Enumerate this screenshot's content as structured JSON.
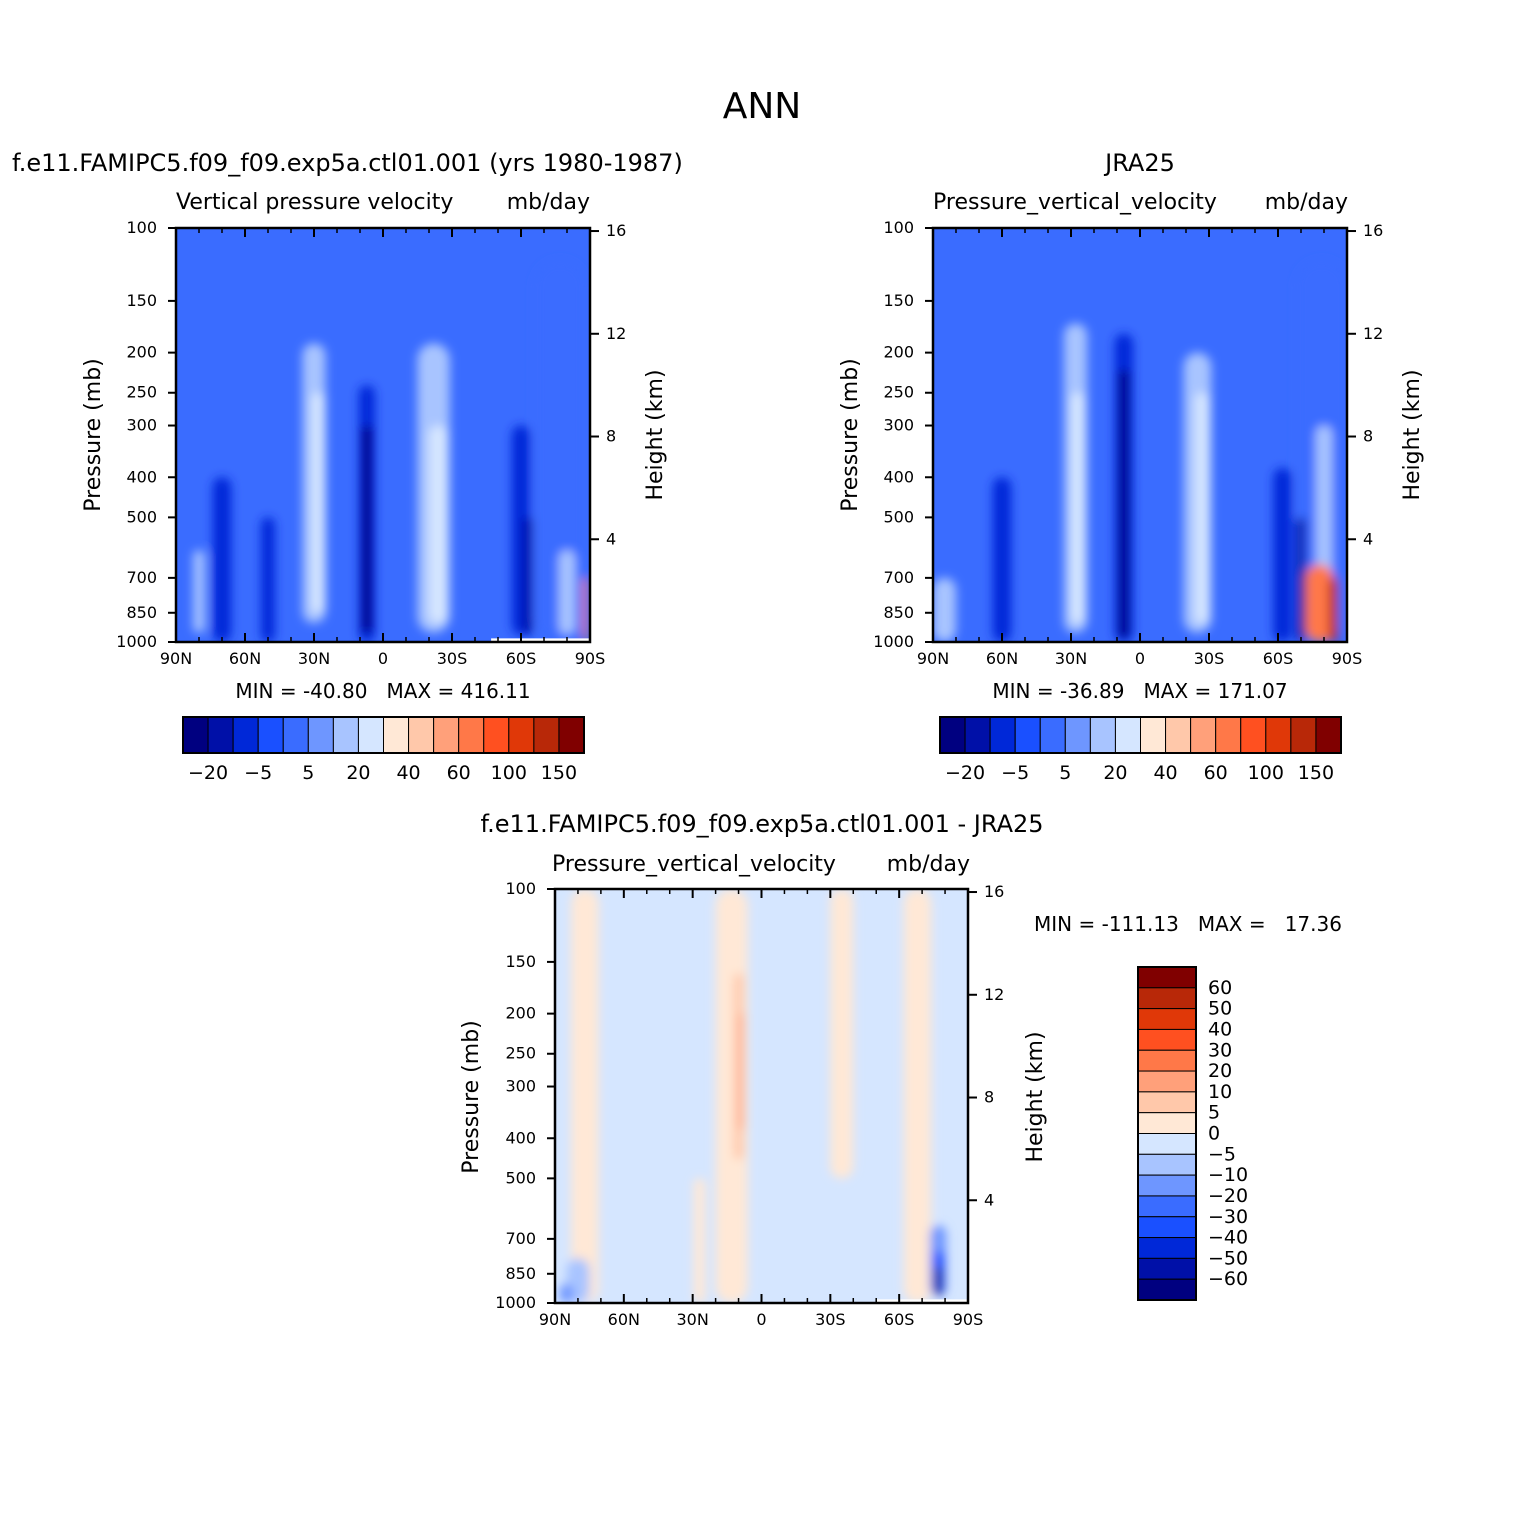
{
  "page_title": "ANN",
  "colors": {
    "model_obs_scale": [
      "#000080",
      "#0010a8",
      "#0028d8",
      "#1a50ff",
      "#3a6cff",
      "#6e96ff",
      "#a8c4ff",
      "#d5e6ff",
      "#ffe8d6",
      "#ffc8aa",
      "#ffa07a",
      "#ff7848",
      "#ff5020",
      "#e03808",
      "#b82808",
      "#800000"
    ],
    "diff_scale": [
      "#000080",
      "#0010a8",
      "#0028d8",
      "#1a50ff",
      "#3a6cff",
      "#6e96ff",
      "#a8c4ff",
      "#d5e6ff",
      "#ffe8d6",
      "#ffc8aa",
      "#ffa07a",
      "#ff7848",
      "#ff5020",
      "#e03808",
      "#b82808",
      "#800000"
    ]
  },
  "chart_data": [
    {
      "id": "model",
      "type": "heatmap",
      "title": "f.e11.FAMIPC5.f09_f09.exp5a.ctl01.001 (yrs 1980-1987)",
      "left_subtitle": "Vertical pressure velocity",
      "right_subtitle": "mb/day",
      "ylabel": "Pressure (mb)",
      "y2label": "Height (km)",
      "xticks": [
        "90N",
        "60N",
        "30N",
        "0",
        "30S",
        "60S",
        "90S"
      ],
      "yticks": [
        100,
        150,
        200,
        250,
        300,
        400,
        500,
        700,
        850,
        1000
      ],
      "y2ticks": [
        4,
        8,
        12,
        16
      ],
      "ylim": [
        1000,
        100
      ],
      "stats": "MIN = -40.80   MAX = 416.11",
      "colorbar": {
        "orientation": "horizontal",
        "labels": [
          "-20",
          "-5",
          "5",
          "20",
          "40",
          "60",
          "100",
          "150"
        ]
      },
      "features": [
        {
          "lat": -77,
          "p_top": 120,
          "p_bot": 1000,
          "width": 22,
          "level": 4
        },
        {
          "lat": 70,
          "p_top": 400,
          "p_bot": 1000,
          "width": 8,
          "level": 2
        },
        {
          "lat": 50,
          "p_top": 500,
          "p_bot": 1000,
          "width": 6,
          "level": 2
        },
        {
          "lat": 30,
          "p_top": 190,
          "p_bot": 900,
          "width": 10,
          "level": 6
        },
        {
          "lat": 28,
          "p_top": 250,
          "p_bot": 850,
          "width": 6,
          "level": 7
        },
        {
          "lat": 7,
          "p_top": 240,
          "p_bot": 1000,
          "width": 7,
          "level": 2
        },
        {
          "lat": 7,
          "p_top": 300,
          "p_bot": 950,
          "width": 4,
          "level": 0
        },
        {
          "lat": -22,
          "p_top": 190,
          "p_bot": 950,
          "width": 14,
          "level": 6
        },
        {
          "lat": -24,
          "p_top": 300,
          "p_bot": 900,
          "width": 8,
          "level": 7
        },
        {
          "lat": -60,
          "p_top": 300,
          "p_bot": 960,
          "width": 8,
          "level": 2
        },
        {
          "lat": -63,
          "p_top": 500,
          "p_bot": 960,
          "width": 4,
          "level": 1
        },
        {
          "lat": -80,
          "p_top": 600,
          "p_bot": 960,
          "width": 7,
          "level": 6
        },
        {
          "lat": -88,
          "p_top": 700,
          "p_bot": 1000,
          "width": 2,
          "level": 11
        },
        {
          "lat": 80,
          "p_top": 600,
          "p_bot": 950,
          "width": 5,
          "level": 6
        }
      ],
      "missing": {
        "lat_from": -47,
        "lat_to": -90,
        "p_top": 980
      }
    },
    {
      "id": "obs",
      "type": "heatmap",
      "title": "JRA25",
      "left_subtitle": "Pressure_vertical_velocity",
      "right_subtitle": "mb/day",
      "ylabel": "Pressure (mb)",
      "y2label": "Height (km)",
      "xticks": [
        "90N",
        "60N",
        "30N",
        "0",
        "30S",
        "60S",
        "90S"
      ],
      "yticks": [
        100,
        150,
        200,
        250,
        300,
        400,
        500,
        700,
        850,
        1000
      ],
      "y2ticks": [
        4,
        8,
        12,
        16
      ],
      "ylim": [
        1000,
        100
      ],
      "stats": "MIN = -36.89   MAX = 171.07",
      "colorbar": {
        "orientation": "horizontal",
        "labels": [
          "-20",
          "-5",
          "5",
          "20",
          "40",
          "60",
          "100",
          "150"
        ]
      },
      "features": [
        {
          "lat": -79,
          "p_top": 120,
          "p_bot": 1000,
          "width": 22,
          "level": 4
        },
        {
          "lat": 60,
          "p_top": 400,
          "p_bot": 1000,
          "width": 8,
          "level": 2
        },
        {
          "lat": 85,
          "p_top": 700,
          "p_bot": 1000,
          "width": 10,
          "level": 6
        },
        {
          "lat": 28,
          "p_top": 170,
          "p_bot": 950,
          "width": 10,
          "level": 6
        },
        {
          "lat": 27,
          "p_top": 250,
          "p_bot": 900,
          "width": 6,
          "level": 7
        },
        {
          "lat": 7,
          "p_top": 180,
          "p_bot": 1000,
          "width": 8,
          "level": 2
        },
        {
          "lat": 7,
          "p_top": 220,
          "p_bot": 980,
          "width": 4,
          "level": 0
        },
        {
          "lat": -25,
          "p_top": 200,
          "p_bot": 950,
          "width": 12,
          "level": 6
        },
        {
          "lat": -27,
          "p_top": 250,
          "p_bot": 900,
          "width": 6,
          "level": 7
        },
        {
          "lat": -62,
          "p_top": 380,
          "p_bot": 1000,
          "width": 8,
          "level": 2
        },
        {
          "lat": -70,
          "p_top": 500,
          "p_bot": 1000,
          "width": 4,
          "level": 1
        },
        {
          "lat": -80,
          "p_top": 300,
          "p_bot": 700,
          "width": 7,
          "level": 6
        },
        {
          "lat": -78,
          "p_top": 650,
          "p_bot": 1000,
          "width": 12,
          "level": 11
        },
        {
          "lat": -84,
          "p_top": 700,
          "p_bot": 1000,
          "width": 4,
          "level": 14
        }
      ]
    },
    {
      "id": "diff",
      "type": "heatmap",
      "title": "f.e11.FAMIPC5.f09_f09.exp5a.ctl01.001 - JRA25",
      "left_subtitle": "Pressure_vertical_velocity",
      "right_subtitle": "mb/day",
      "ylabel": "Pressure (mb)",
      "y2label": "Height (km)",
      "xticks": [
        "90N",
        "60N",
        "30N",
        "0",
        "30S",
        "60S",
        "90S"
      ],
      "yticks": [
        100,
        150,
        200,
        250,
        300,
        400,
        500,
        700,
        850,
        1000
      ],
      "y2ticks": [
        4,
        8,
        12,
        16
      ],
      "ylim": [
        1000,
        100
      ],
      "stats": "MIN = -111.13   MAX =   17.36",
      "colorbar": {
        "orientation": "vertical",
        "labels": [
          "60",
          "50",
          "40",
          "30",
          "20",
          "10",
          "5",
          "0",
          "-5",
          "-10",
          "-20",
          "-30",
          "-40",
          "-50",
          "-60"
        ]
      },
      "features": [
        {
          "lat": 77,
          "p_top": 100,
          "p_bot": 1000,
          "width": 12,
          "level": 8
        },
        {
          "lat": 13,
          "p_top": 100,
          "p_bot": 1000,
          "width": 14,
          "level": 8
        },
        {
          "lat": 10,
          "p_top": 160,
          "p_bot": 450,
          "width": 4,
          "level": 9
        },
        {
          "lat": 9,
          "p_top": 200,
          "p_bot": 380,
          "width": 2,
          "level": 10
        },
        {
          "lat": 27,
          "p_top": 500,
          "p_bot": 1000,
          "width": 5,
          "level": 8
        },
        {
          "lat": -35,
          "p_top": 100,
          "p_bot": 500,
          "width": 10,
          "level": 8
        },
        {
          "lat": -68,
          "p_top": 100,
          "p_bot": 1000,
          "width": 12,
          "level": 8
        },
        {
          "lat": 80,
          "p_top": 780,
          "p_bot": 1000,
          "width": 10,
          "level": 6
        },
        {
          "lat": 85,
          "p_top": 900,
          "p_bot": 1000,
          "width": 6,
          "level": 5
        },
        {
          "lat": -77,
          "p_top": 650,
          "p_bot": 960,
          "width": 7,
          "level": 5
        },
        {
          "lat": -77,
          "p_top": 750,
          "p_bot": 960,
          "width": 5,
          "level": 3
        },
        {
          "lat": -77,
          "p_top": 820,
          "p_bot": 960,
          "width": 3,
          "level": 0
        }
      ],
      "missing": {
        "lat_from": -50,
        "lat_to": -90,
        "p_top": 980
      }
    }
  ]
}
